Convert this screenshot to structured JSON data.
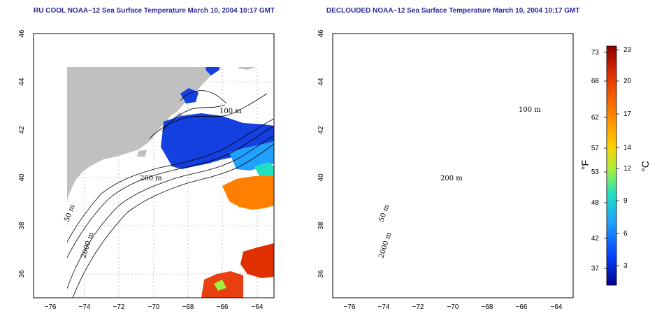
{
  "maps": [
    {
      "title": "RU COOL NOAA−12 Sea Surface Temperature March 10, 2004 10:17 GMT",
      "contour_labels": [
        "100 m",
        "200 m",
        "50 m",
        "2000 m"
      ]
    },
    {
      "title": "DECLOUDED NOAA−12 Sea Surface Temperature March 10, 2004 10:17 GMT",
      "contour_labels": [
        "100 m",
        "200 m",
        "50 m",
        "2000 m"
      ]
    }
  ],
  "axes": {
    "x_ticks": [
      "−76",
      "−74",
      "−72",
      "−70",
      "−68",
      "−66",
      "−64"
    ],
    "y_ticks": [
      "36",
      "38",
      "40",
      "42",
      "44",
      "46"
    ],
    "lon_range": [
      -77,
      -63
    ],
    "lat_range": [
      35,
      46
    ]
  },
  "colorbar": {
    "fahrenheit_ticks": [
      "73",
      "68",
      "62",
      "57",
      "53",
      "48",
      "42",
      "37"
    ],
    "celsius_ticks": [
      "23",
      "20",
      "17",
      "14",
      "12",
      "9",
      "6",
      "3"
    ],
    "fahrenheit_label": "°F",
    "celsius_label": "°C",
    "colors": [
      "#8b0000",
      "#e03000",
      "#ff8000",
      "#ffd000",
      "#a0f040",
      "#20e0c0",
      "#20a0ff",
      "#0040ff",
      "#00008b"
    ]
  },
  "colors": {
    "land": "#c0c0c0",
    "ocean": "#ffffff",
    "cold_water": "#1440e0",
    "warm_water": "#e84010",
    "title": "#2a2a9a"
  }
}
